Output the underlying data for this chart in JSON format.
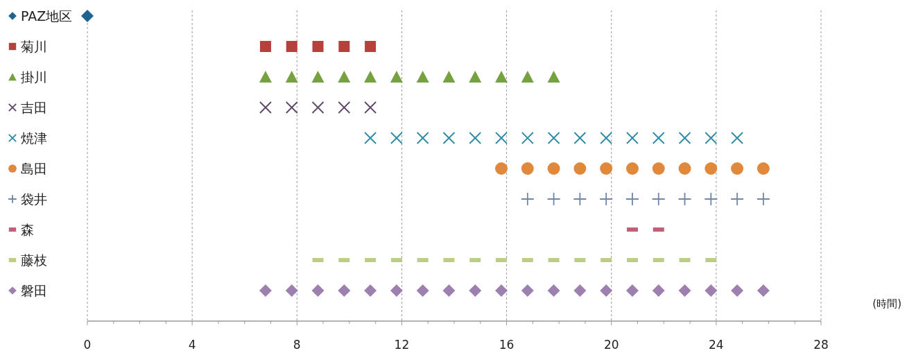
{
  "chart_data": {
    "type": "scatter",
    "orientation": "horizontal",
    "xlabel": "(時間)",
    "xlim": [
      0,
      28
    ],
    "xticks": [
      0,
      {
        "value": 1,
        "label": null
      },
      {
        "value": 2,
        "label": null
      },
      {
        "value": 3,
        "label": null
      },
      4,
      {
        "value": 5,
        "label": null
      },
      {
        "value": 6,
        "label": null
      },
      {
        "value": 7,
        "label": null
      },
      8,
      {
        "value": 9,
        "label": null
      },
      {
        "value": 10,
        "label": null
      },
      {
        "value": 11,
        "label": null
      },
      12,
      {
        "value": 13,
        "label": null
      },
      {
        "value": 14,
        "label": null
      },
      {
        "value": 15,
        "label": null
      },
      16,
      {
        "value": 17,
        "label": null
      },
      {
        "value": 18,
        "label": null
      },
      {
        "value": 19,
        "label": null
      },
      20,
      {
        "value": 21,
        "label": null
      },
      {
        "value": 22,
        "label": null
      },
      {
        "value": 23,
        "label": null
      },
      24,
      {
        "value": 25,
        "label": null
      },
      {
        "value": 26,
        "label": null
      },
      {
        "value": 27,
        "label": null
      },
      28
    ],
    "categories": [
      "PAZ地区",
      "菊川",
      "掛川",
      "吉田",
      "焼津",
      "島田",
      "袋井",
      "森",
      "藤枝",
      "磐田"
    ],
    "grid": "x",
    "series": [
      {
        "color": "#1f6391",
        "marker": "diamond",
        "x": [
          "PAZ地区"
        ],
        "values": [
          0
        ]
      },
      {
        "color": "#b5403c",
        "marker": "square",
        "x": [
          "菊川",
          "菊川",
          "菊川",
          "菊川",
          "菊川"
        ],
        "values": [
          6.8,
          7.8,
          8.8,
          9.8,
          10.8
        ]
      },
      {
        "color": "#76a23e",
        "marker": "triangle",
        "x": [
          "掛川",
          "掛川",
          "掛川",
          "掛川",
          "掛川",
          "掛川",
          "掛川",
          "掛川",
          "掛川",
          "掛川",
          "掛川",
          "掛川"
        ],
        "values": [
          6.8,
          7.8,
          8.8,
          9.8,
          10.8,
          11.8,
          12.8,
          13.8,
          14.8,
          15.8,
          16.8,
          17.8
        ]
      },
      {
        "color": "#5d4566",
        "marker": "cross",
        "x": [
          "吉田",
          "吉田",
          "吉田",
          "吉田",
          "吉田"
        ],
        "values": [
          6.8,
          7.8,
          8.8,
          9.8,
          10.8
        ]
      },
      {
        "color": "#2a8aa3",
        "marker": "cross",
        "x": [
          "焼津",
          "焼津",
          "焼津",
          "焼津",
          "焼津",
          "焼津",
          "焼津",
          "焼津",
          "焼津",
          "焼津",
          "焼津",
          "焼津",
          "焼津",
          "焼津",
          "焼津"
        ],
        "values": [
          10.8,
          11.8,
          12.8,
          13.8,
          14.8,
          15.8,
          16.8,
          17.8,
          18.8,
          19.8,
          20.8,
          21.8,
          22.8,
          23.8,
          24.8
        ]
      },
      {
        "color": "#e0883c",
        "marker": "circle",
        "x": [
          "島田",
          "島田",
          "島田",
          "島田",
          "島田",
          "島田",
          "島田",
          "島田",
          "島田",
          "島田",
          "島田"
        ],
        "values": [
          15.8,
          16.8,
          17.8,
          18.8,
          19.8,
          20.8,
          21.8,
          22.8,
          23.8,
          24.8,
          25.8
        ]
      },
      {
        "color": "#6f86a6",
        "marker": "plus",
        "x": [
          "袋井",
          "袋井",
          "袋井",
          "袋井",
          "袋井",
          "袋井",
          "袋井",
          "袋井",
          "袋井",
          "袋井"
        ],
        "values": [
          16.8,
          17.8,
          18.8,
          19.8,
          20.8,
          21.8,
          22.8,
          23.8,
          24.8,
          25.8
        ]
      },
      {
        "color": "#c06078",
        "x": [
          "森",
          "森"
        ],
        "values": [
          20.8,
          21.8
        ]
      },
      {
        "color": "#bccd86",
        "x": [
          "藤枝",
          "藤枝",
          "藤枝",
          "藤枝",
          "藤枝",
          "藤枝",
          "藤枝",
          "藤枝",
          "藤枝",
          "藤枝",
          "藤枝",
          "藤枝",
          "藤枝",
          "藤枝",
          "藤枝",
          "藤枝"
        ],
        "values": [
          8.8,
          9.8,
          10.8,
          11.8,
          12.8,
          13.8,
          14.8,
          15.8,
          16.8,
          17.8,
          18.8,
          19.8,
          20.8,
          21.8,
          22.8,
          23.8
        ]
      },
      {
        "color": "#9d80b0",
        "marker": "diamond",
        "x": [
          "磐田",
          "磐田",
          "磐田",
          "磐田",
          "磐田",
          "磐田",
          "磐田",
          "磐田",
          "磐田",
          "磐田",
          "磐田",
          "磐田",
          "磐田",
          "磐田",
          "磐田",
          "磐田",
          "磐田",
          "磐田",
          "磐田",
          "磐田"
        ],
        "values": [
          6.8,
          7.8,
          8.8,
          9.8,
          10.8,
          11.8,
          12.8,
          13.8,
          14.8,
          15.8,
          16.8,
          17.8,
          18.8,
          19.8,
          20.8,
          21.8,
          22.8,
          23.8,
          24.8,
          25.8
        ]
      }
    ]
  }
}
